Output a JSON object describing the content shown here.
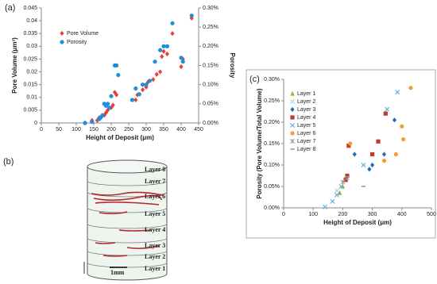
{
  "chart_data": [
    {
      "type": "scatter",
      "panel_label": "(a)",
      "xlabel": "Height of Deposit (μm)",
      "ylabel": "Pore Volume (μm³)",
      "y2label": "Porosity",
      "xlim": [
        0,
        450
      ],
      "xticks": [
        0,
        50,
        100,
        150,
        200,
        250,
        300,
        350,
        400,
        450
      ],
      "ylim": [
        0,
        0.045
      ],
      "yticks": [
        0,
        0.005,
        0.01,
        0.015,
        0.02,
        0.025,
        0.03,
        0.035,
        0.04,
        0.045
      ],
      "y2lim": [
        0,
        0.3
      ],
      "y2ticks": [
        {
          "value": 0,
          "label": "0.00%"
        },
        {
          "value": 0.05,
          "label": "0.05%"
        },
        {
          "value": 0.1,
          "label": "0.10%"
        },
        {
          "value": 0.15,
          "label": "0.15%"
        },
        {
          "value": 0.2,
          "label": "0.20%"
        },
        {
          "value": 0.25,
          "label": "0.25%"
        },
        {
          "value": 0.3,
          "label": "0.30%"
        }
      ],
      "legend": "upper left",
      "series": [
        {
          "name": "Pore Volume",
          "color": "#e8413c",
          "marker": "diamond",
          "x": [
            125,
            145,
            160,
            165,
            170,
            175,
            180,
            185,
            190,
            200,
            205,
            210,
            215,
            270,
            275,
            290,
            300,
            305,
            320,
            330,
            340,
            345,
            350,
            360,
            375,
            400,
            405,
            430
          ],
          "values": [
            0,
            0.001,
            0.001,
            0.002,
            0.002,
            0.003,
            0.003,
            0.004,
            0.005,
            0.006,
            0.007,
            0.012,
            0.011,
            0.009,
            0.011,
            0.013,
            0.014,
            0.016,
            0.017,
            0.019,
            0.02,
            0.026,
            0.028,
            0.027,
            0.035,
            0.022,
            0.025,
            0.041
          ]
        },
        {
          "name": "Porosity",
          "color": "#1f8fd8",
          "marker": "circle",
          "axis": "y2",
          "x": [
            125,
            145,
            165,
            170,
            175,
            180,
            185,
            190,
            195,
            200,
            210,
            215,
            220,
            260,
            270,
            280,
            290,
            300,
            310,
            325,
            340,
            350,
            360,
            375,
            400,
            405,
            430
          ],
          "values": [
            0,
            0.003,
            0.01,
            0.015,
            0.02,
            0.05,
            0.045,
            0.05,
            0.04,
            0.07,
            0.15,
            0.15,
            0.125,
            0.06,
            0.09,
            0.075,
            0.1,
            0.1,
            0.11,
            0.16,
            0.19,
            0.2,
            0.2,
            0.26,
            0.17,
            0.16,
            0.28
          ]
        }
      ]
    },
    {
      "type": "scatter",
      "panel_label": "(c)",
      "xlabel": "Height of Deposit (μm)",
      "ylabel": "Porosity (Pore Volume/Total Volume)",
      "xlim": [
        0,
        500
      ],
      "xticks": [
        0,
        100,
        200,
        300,
        400,
        500
      ],
      "ylim": [
        0,
        0.3
      ],
      "yticks": [
        {
          "value": 0,
          "label": "0.00%"
        },
        {
          "value": 0.05,
          "label": "0.05%"
        },
        {
          "value": 0.1,
          "label": "0.10%"
        },
        {
          "value": 0.15,
          "label": "0.15%"
        },
        {
          "value": 0.2,
          "label": "0.20%"
        },
        {
          "value": 0.25,
          "label": "0.25%"
        },
        {
          "value": 0.3,
          "label": "0.30%"
        }
      ],
      "legend": "upper left",
      "series": [
        {
          "name": "Layer 1",
          "color": "#8db33a",
          "marker": "triangle",
          "x": [
            190,
            200
          ],
          "values": [
            0.035,
            0.05
          ]
        },
        {
          "name": "Layer 2",
          "color": "#c8c8c8",
          "marker": "x",
          "x": [
            180
          ],
          "values": [
            0.04
          ]
        },
        {
          "name": "Layer 3",
          "color": "#1f6fb8",
          "marker": "diamond",
          "x": [
            240,
            290,
            300,
            340,
            375
          ],
          "values": [
            0.125,
            0.09,
            0.1,
            0.125,
            0.205
          ]
        },
        {
          "name": "Layer 4",
          "color": "#c0392b",
          "marker": "square",
          "x": [
            210,
            215,
            220,
            300,
            320,
            345
          ],
          "values": [
            0.065,
            0.075,
            0.145,
            0.125,
            0.155,
            0.22
          ]
        },
        {
          "name": "Layer 5",
          "color": "#5fb3e0",
          "marker": "x",
          "x": [
            140,
            165,
            180,
            195,
            270,
            350,
            385
          ],
          "values": [
            0.002,
            0.015,
            0.03,
            0.05,
            0.1,
            0.23,
            0.27
          ]
        },
        {
          "name": "Layer 6",
          "color": "#f39c33",
          "marker": "circle",
          "x": [
            225,
            340,
            380,
            400,
            405,
            430
          ],
          "values": [
            0.15,
            0.11,
            0.125,
            0.19,
            0.16,
            0.28
          ]
        },
        {
          "name": "Layer 7",
          "color": "#9a9a9a",
          "marker": "star",
          "x": [
            200,
            215
          ],
          "values": [
            0.06,
            0.07
          ]
        },
        {
          "name": "Layer 8",
          "color": "#777777",
          "marker": "dash",
          "x": [
            270,
            210
          ],
          "values": [
            0.05,
            0.07
          ]
        }
      ]
    }
  ],
  "image_panel": {
    "panel_label": "(b)",
    "layers": [
      "Layer 8",
      "Layer 7",
      "Layer 6",
      "Layer 5",
      "Layer 4",
      "Layer 3",
      "Layer 2",
      "Layer 1"
    ],
    "scale_bar": "1mm"
  }
}
